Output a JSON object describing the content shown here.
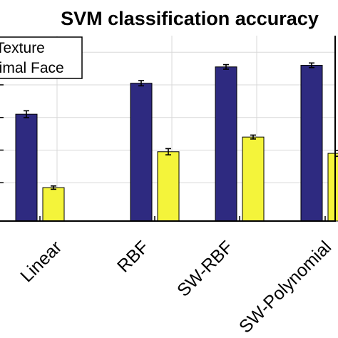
{
  "chart_data": {
    "type": "bar",
    "title": "SVM classification accuracy",
    "categories": [
      "Linear",
      "RBF",
      "SW-RBF",
      "SW-Polynomial"
    ],
    "series": [
      {
        "name": "Texture",
        "color": "#2e2a80",
        "values": [
          0.62,
          0.81,
          0.91,
          0.92
        ],
        "errors": [
          0.021,
          0.016,
          0.014,
          0.014
        ]
      },
      {
        "name": "Animal Face",
        "color": "#f4f43a",
        "values": [
          0.17,
          0.39,
          0.48,
          0.38
        ],
        "errors": [
          0.01,
          0.019,
          0.012,
          0.018
        ]
      }
    ],
    "ylim": [
      -0.035,
      1.32
    ],
    "grid": true,
    "legend": "top-left",
    "xlabel": "",
    "ylabel": ""
  }
}
